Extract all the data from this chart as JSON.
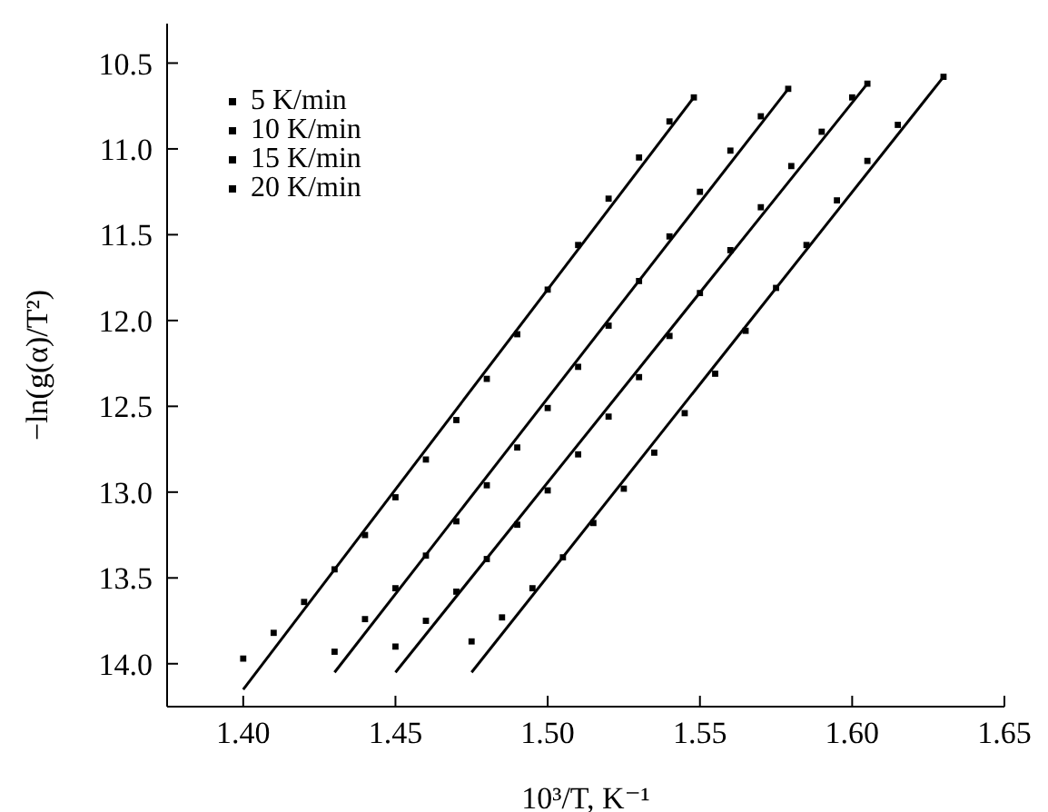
{
  "chart_data": {
    "type": "scatter",
    "xlabel": "10³/T, K⁻¹",
    "ylabel": "−ln(g(α)/T²)",
    "xlim": [
      1.375,
      1.65
    ],
    "ylim": [
      14.25,
      10.27
    ],
    "xticks": [
      {
        "value": 1.4,
        "label": "1.40"
      },
      {
        "value": 1.45,
        "label": "1.45"
      },
      {
        "value": 1.5,
        "label": "1.50"
      },
      {
        "value": 1.55,
        "label": "1.55"
      },
      {
        "value": 1.6,
        "label": "1.60"
      },
      {
        "value": 1.65,
        "label": "1.65"
      }
    ],
    "yticks": [
      10.5,
      {
        "value": 11,
        "label": "11.0"
      },
      11.5,
      {
        "value": 12,
        "label": "12.0"
      },
      12.5,
      {
        "value": 13,
        "label": "13.0"
      },
      13.5,
      {
        "value": 14,
        "label": "14.0"
      }
    ],
    "grid": false,
    "legend": "top left",
    "marker": "square",
    "series": [
      {
        "name": "5 K/min",
        "color": "#000000",
        "x": [
          1.4,
          1.41,
          1.42,
          1.43,
          1.44,
          1.45,
          1.46,
          1.47,
          1.48,
          1.49,
          1.5,
          1.51,
          1.52,
          1.53,
          1.54,
          1.548
        ],
        "values": [
          13.97,
          13.82,
          13.64,
          13.45,
          13.25,
          13.03,
          12.81,
          12.58,
          12.34,
          12.08,
          11.82,
          11.56,
          11.29,
          11.05,
          10.84,
          10.7
        ]
      },
      {
        "name": "10 K/min",
        "color": "#000000",
        "x": [
          1.43,
          1.44,
          1.45,
          1.46,
          1.47,
          1.48,
          1.49,
          1.5,
          1.51,
          1.52,
          1.53,
          1.54,
          1.55,
          1.56,
          1.57,
          1.579
        ],
        "values": [
          13.93,
          13.74,
          13.56,
          13.37,
          13.17,
          12.96,
          12.74,
          12.51,
          12.27,
          12.03,
          11.77,
          11.51,
          11.25,
          11.01,
          10.81,
          10.65
        ]
      },
      {
        "name": "15 K/min",
        "color": "#000000",
        "x": [
          1.45,
          1.46,
          1.47,
          1.48,
          1.49,
          1.5,
          1.51,
          1.52,
          1.53,
          1.54,
          1.55,
          1.56,
          1.57,
          1.58,
          1.59,
          1.6,
          1.605
        ],
        "values": [
          13.9,
          13.75,
          13.58,
          13.39,
          13.19,
          12.99,
          12.78,
          12.56,
          12.33,
          12.09,
          11.84,
          11.59,
          11.34,
          11.1,
          10.9,
          10.7,
          10.62
        ]
      },
      {
        "name": "20 K/min",
        "color": "#000000",
        "x": [
          1.475,
          1.485,
          1.495,
          1.505,
          1.515,
          1.525,
          1.535,
          1.545,
          1.555,
          1.565,
          1.575,
          1.585,
          1.595,
          1.605,
          1.615,
          1.63
        ],
        "values": [
          13.87,
          13.73,
          13.56,
          13.38,
          13.18,
          12.98,
          12.77,
          12.54,
          12.31,
          12.06,
          11.81,
          11.56,
          11.3,
          11.07,
          10.86,
          10.58
        ]
      },
      {
        "type": "line",
        "color": "#000000",
        "line_style": "solid",
        "marker": "none",
        "x": [
          1.4,
          1.548
        ],
        "values": [
          14.15,
          10.7
        ]
      },
      {
        "type": "line",
        "color": "#000000",
        "line_style": "solid",
        "marker": "none",
        "x": [
          1.43,
          1.579
        ],
        "values": [
          14.05,
          10.65
        ]
      },
      {
        "type": "line",
        "color": "#000000",
        "line_style": "solid",
        "marker": "none",
        "x": [
          1.45,
          1.605
        ],
        "values": [
          14.05,
          10.62
        ]
      },
      {
        "type": "line",
        "color": "#000000",
        "line_style": "solid",
        "marker": "none",
        "x": [
          1.475,
          1.63
        ],
        "values": [
          14.05,
          10.58
        ]
      }
    ]
  }
}
